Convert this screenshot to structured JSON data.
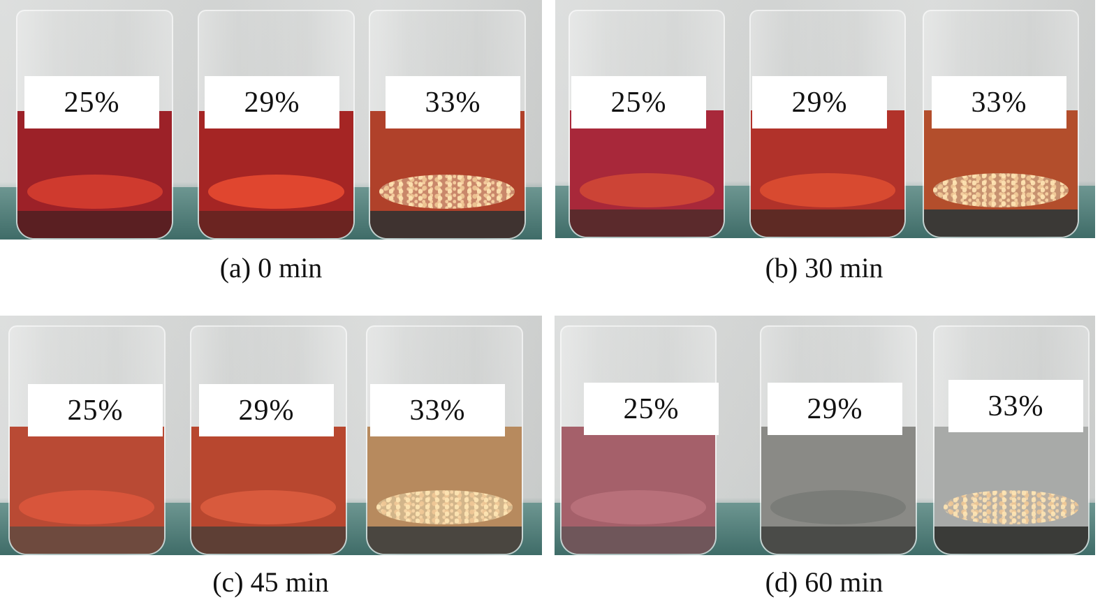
{
  "panels": [
    {
      "caption": "(a) 0 min",
      "labels": [
        "25%",
        "29%",
        "33%"
      ],
      "liquid_colors": [
        "#9c2128",
        "#a52524",
        "#b0412a"
      ],
      "layer_colors": [
        "#cf3a2e",
        "#e0462f",
        "#c9876a"
      ],
      "sediment_colors": [
        "#5a1f22",
        "#6b2421",
        "#3f3330"
      ]
    },
    {
      "caption": "(b) 30 min",
      "labels": [
        "25%",
        "29%",
        "33%"
      ],
      "liquid_colors": [
        "#a8283a",
        "#b1322a",
        "#b34e2c"
      ],
      "layer_colors": [
        "#cc4436",
        "#d84a30",
        "#c79270"
      ],
      "sediment_colors": [
        "#5b2a2c",
        "#5e2a24",
        "#3b3936"
      ]
    },
    {
      "caption": "(c) 45 min",
      "labels": [
        "25%",
        "29%",
        "33%"
      ],
      "liquid_colors": [
        "#b94a34",
        "#b8472f",
        "#b78a5e"
      ],
      "layer_colors": [
        "#d8553b",
        "#d85a3d",
        "#d2b58a"
      ],
      "sediment_colors": [
        "#6e4a3e",
        "#5e3f35",
        "#4a4640"
      ]
    },
    {
      "caption": "(d) 60 min",
      "labels": [
        "25%",
        "29%",
        "33%"
      ],
      "liquid_colors": [
        "#a5606a",
        "#8a8a86",
        "#a8aaa8"
      ],
      "layer_colors": [
        "#b8707a",
        "#7a7c78",
        "#b9b0a3"
      ],
      "sediment_colors": [
        "#6f565a",
        "#4a4b48",
        "#3a3b38"
      ]
    }
  ]
}
